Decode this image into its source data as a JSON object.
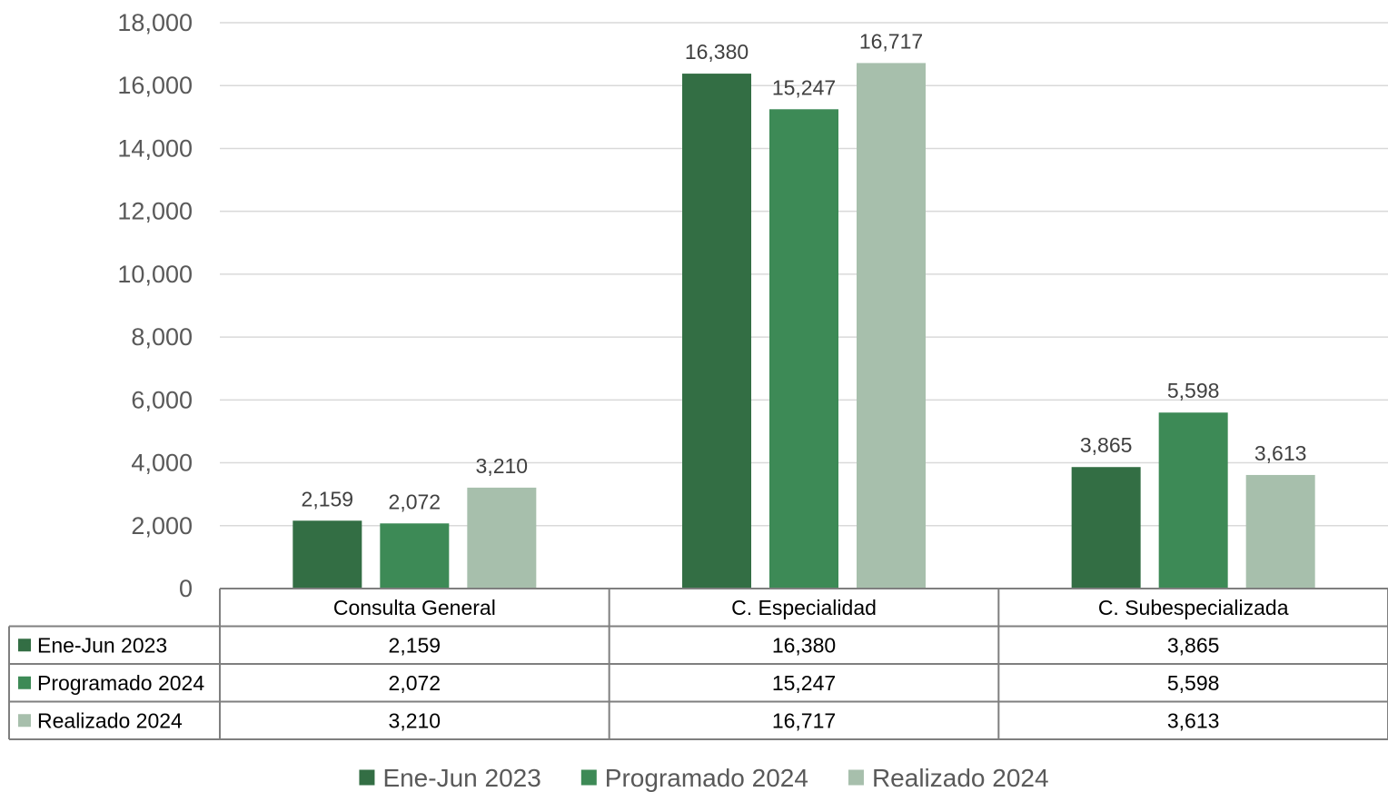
{
  "chart_data": {
    "type": "bar",
    "title": "",
    "xlabel": "",
    "ylabel": "",
    "categories": [
      "Consulta General",
      "C. Especialidad",
      "C. Subespecializada"
    ],
    "series": [
      {
        "name": "Ene-Jun 2023",
        "values": [
          2159,
          16380,
          3865
        ],
        "labels": [
          "2,159",
          "16,380",
          "3,865"
        ],
        "color": "#336e44"
      },
      {
        "name": "Programado 2024",
        "values": [
          2072,
          15247,
          5598
        ],
        "labels": [
          "2,072",
          "15,247",
          "5,598"
        ],
        "color": "#3d8a56"
      },
      {
        "name": "Realizado 2024",
        "values": [
          3210,
          16717,
          3613
        ],
        "labels": [
          "3,210",
          "16,717",
          "3,613"
        ],
        "color": "#a7bfac"
      }
    ],
    "ylim": [
      0,
      18000
    ],
    "yticks": [
      0,
      2000,
      4000,
      6000,
      8000,
      10000,
      12000,
      14000,
      16000,
      18000
    ],
    "ytick_labels": [
      "0",
      "2,000",
      "4,000",
      "6,000",
      "8,000",
      "10,000",
      "12,000",
      "14,000",
      "16,000",
      "18,000"
    ],
    "grid": true,
    "legend_position": "bottom",
    "data_table": true
  },
  "colors": {
    "grid": "#d9d9d9",
    "table_border": "#7f7f7f"
  }
}
